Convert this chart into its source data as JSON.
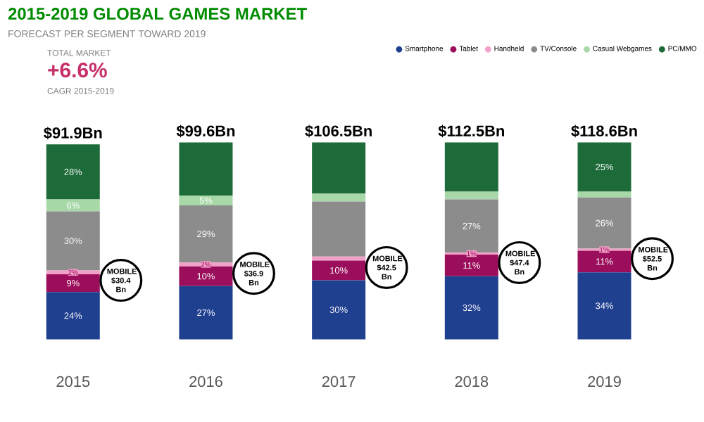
{
  "chart_data": {
    "type": "bar",
    "stacked": true,
    "tick_labels": "x",
    "ylim": [
      0,
      100
    ],
    "title": "2015-2019 GLOBAL GAMES MARKET",
    "subtitle": "FORECAST PER SEGMENT TOWARD 2019",
    "categories": [
      "2015",
      "2016",
      "2017",
      "2018",
      "2019"
    ],
    "series": [
      {
        "name": "Smartphone",
        "color": "#1f3f8f",
        "values": [
          24,
          27,
          30,
          32,
          34
        ],
        "value_labels": [
          "24%",
          "27%",
          "30%",
          "32%",
          "34%"
        ]
      },
      {
        "name": "Tablet",
        "color": "#9b0e5b",
        "values": [
          9,
          10,
          10,
          11,
          11
        ],
        "value_labels": [
          "9%",
          "10%",
          "10%",
          "11%",
          "11%"
        ]
      },
      {
        "name": "Handheld",
        "color": "#f2a0c8",
        "values": [
          2,
          2,
          2,
          1,
          1
        ],
        "value_labels": [
          "2%",
          "2%",
          null,
          "1%",
          "1%"
        ]
      },
      {
        "name": "TV/Console",
        "color": "#8c8c8c",
        "values": [
          30,
          29,
          28,
          27,
          26
        ],
        "value_labels": [
          "30%",
          "29%",
          null,
          "27%",
          "26%"
        ]
      },
      {
        "name": "Casual Webgames",
        "color": "#a8d8a8",
        "values": [
          6,
          5,
          4,
          4,
          3
        ],
        "value_labels": [
          "6%",
          "5%",
          null,
          null,
          null
        ]
      },
      {
        "name": "PC/MMO",
        "color": "#1e6b3a",
        "values": [
          28,
          27,
          26,
          25,
          25
        ],
        "value_labels": [
          "28%",
          null,
          null,
          null,
          "25%"
        ]
      }
    ],
    "legend": "top right",
    "marker": "circle",
    "annotations": [
      "TOTAL MARKET",
      "+6.6%",
      "CAGR 2015-2019",
      "MOBILE $30.4 Bn",
      "MOBILE $36.9 Bn",
      "MOBILE $42.5 Bn",
      "MOBILE $47.4 Bn",
      "MOBILE $52.5 Bn",
      {
        "text": "$91.9Bn",
        "x": "2015",
        "y": 99
      },
      {
        "text": "$99.6Bn",
        "x": "2016",
        "y": 100
      },
      {
        "text": "$106.5Bn",
        "x": "2017",
        "y": 100
      },
      {
        "text": "$112.5Bn",
        "x": "2018",
        "y": 100
      },
      {
        "text": "$118.6Bn",
        "x": "2019",
        "y": 100
      }
    ]
  }
}
